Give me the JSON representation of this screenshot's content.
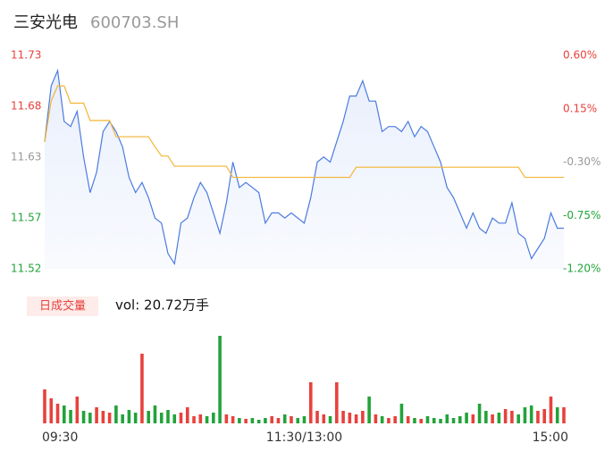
{
  "header": {
    "name": "三安光电",
    "code": "600703.SH"
  },
  "chart_data": [
    {
      "type": "line",
      "x": [
        0,
        3,
        6,
        9,
        12,
        15,
        18,
        21,
        24,
        27,
        30,
        33,
        36,
        39,
        42,
        45,
        48,
        51,
        54,
        57,
        60,
        63,
        66,
        69,
        72,
        75,
        78,
        81,
        84,
        87,
        90,
        93,
        96,
        99,
        102,
        105,
        108,
        111,
        114,
        117,
        120,
        123,
        126,
        129,
        132,
        135,
        138,
        141,
        144,
        147,
        150,
        153,
        156,
        159,
        162,
        165,
        168,
        171,
        174,
        177,
        180,
        183,
        186,
        189,
        192,
        195,
        198,
        201,
        204,
        207,
        210,
        213,
        216,
        219,
        222,
        225,
        228,
        231,
        234,
        237,
        240
      ],
      "xlim": [
        0,
        240
      ],
      "series": [
        {
          "color": "#4b7be0",
          "values": [
            11.645,
            11.7,
            11.715,
            11.665,
            11.66,
            11.675,
            11.63,
            11.595,
            11.615,
            11.655,
            11.665,
            11.655,
            11.64,
            11.61,
            11.595,
            11.605,
            11.59,
            11.57,
            11.565,
            11.535,
            11.525,
            11.565,
            11.57,
            11.59,
            11.605,
            11.595,
            11.575,
            11.555,
            11.585,
            11.625,
            11.6,
            11.605,
            11.6,
            11.595,
            11.565,
            11.575,
            11.575,
            11.57,
            11.575,
            11.57,
            11.565,
            11.59,
            11.625,
            11.63,
            11.625,
            11.645,
            11.665,
            11.69,
            11.69,
            11.705,
            11.685,
            11.685,
            11.655,
            11.66,
            11.66,
            11.655,
            11.665,
            11.65,
            11.66,
            11.655,
            11.64,
            11.625,
            11.6,
            11.59,
            11.575,
            11.56,
            11.575,
            11.56,
            11.555,
            11.57,
            11.565,
            11.565,
            11.585,
            11.555,
            11.55,
            11.53,
            11.54,
            11.55,
            11.575,
            11.56,
            11.56
          ]
        },
        {
          "color": "#f2b533",
          "values": [
            11.645,
            11.685,
            11.7,
            11.7,
            11.683,
            11.683,
            11.683,
            11.666,
            11.666,
            11.666,
            11.666,
            11.65,
            11.65,
            11.65,
            11.65,
            11.65,
            11.65,
            11.64,
            11.631,
            11.631,
            11.621,
            11.621,
            11.621,
            11.621,
            11.621,
            11.621,
            11.621,
            11.621,
            11.621,
            11.61,
            11.61,
            11.61,
            11.61,
            11.61,
            11.61,
            11.61,
            11.61,
            11.61,
            11.61,
            11.61,
            11.61,
            11.61,
            11.61,
            11.61,
            11.61,
            11.61,
            11.61,
            11.61,
            11.62,
            11.62,
            11.62,
            11.62,
            11.62,
            11.62,
            11.62,
            11.62,
            11.62,
            11.62,
            11.62,
            11.62,
            11.62,
            11.62,
            11.62,
            11.62,
            11.62,
            11.62,
            11.62,
            11.62,
            11.62,
            11.62,
            11.62,
            11.62,
            11.62,
            11.62,
            11.61,
            11.61,
            11.61,
            11.61,
            11.61,
            11.61,
            11.61
          ]
        }
      ],
      "ylim": [
        11.52,
        11.73
      ],
      "yticks": [
        11.73,
        11.68,
        11.63,
        11.57,
        11.52
      ],
      "y2lim": [
        -1.2,
        0.6
      ],
      "y2ticks": [
        {
          "value": 0.6,
          "label": "0.60%"
        },
        {
          "value": 0.15,
          "label": "0.15%"
        },
        {
          "value": -0.3,
          "label": "-0.30%"
        },
        {
          "value": -0.75,
          "label": "-0.75%"
        },
        {
          "value": -1.2,
          "label": "-1.20%"
        }
      ],
      "tick_colors": [
        "#e8413c",
        "#e8413c",
        "#999999",
        "#22a33a",
        "#22a33a"
      ],
      "grid": false
    },
    {
      "type": "bar",
      "title": "日成交量",
      "annotation": "vol: 20.72万手",
      "up_color": "#e8413c",
      "down_color": "#22a33a",
      "values": [
        38,
        28,
        22,
        20,
        15,
        30,
        14,
        12,
        18,
        14,
        12,
        20,
        10,
        15,
        12,
        78,
        14,
        20,
        12,
        15,
        10,
        12,
        18,
        8,
        10,
        8,
        12,
        98,
        10,
        8,
        6,
        5,
        6,
        4,
        6,
        8,
        6,
        10,
        8,
        6,
        8,
        46,
        14,
        10,
        8,
        46,
        14,
        12,
        10,
        14,
        30,
        10,
        8,
        6,
        8,
        22,
        8,
        6,
        5,
        8,
        6,
        5,
        10,
        6,
        8,
        12,
        10,
        22,
        14,
        10,
        12,
        16,
        14,
        10,
        18,
        20,
        14,
        16,
        30,
        18,
        18
      ],
      "xticks": [
        {
          "value": 0,
          "label": "09:30"
        },
        {
          "value": 120,
          "label": "11:30/13:00"
        },
        {
          "value": 240,
          "label": "15:00"
        }
      ]
    }
  ]
}
